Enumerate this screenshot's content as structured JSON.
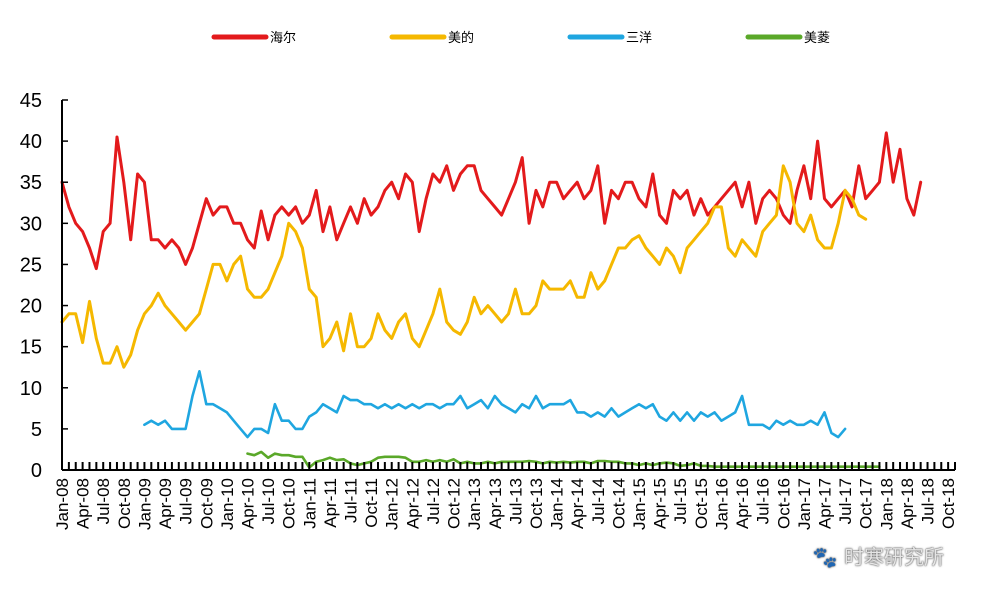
{
  "chart_data": {
    "type": "line",
    "title": "",
    "xlabel": "",
    "ylabel": "",
    "ylim": [
      0,
      45
    ],
    "yticks": [
      0,
      5,
      10,
      15,
      20,
      25,
      30,
      35,
      40,
      45
    ],
    "grid": false,
    "legend_position": "top",
    "x_start": "2008-01",
    "x_end": "2018-11",
    "x_tick_labels": [
      "Jan-08",
      "Apr-08",
      "Jul-08",
      "Oct-08",
      "Jan-09",
      "Apr-09",
      "Jul-09",
      "Oct-09",
      "Jan-10",
      "Apr-10",
      "Jul-10",
      "Oct-10",
      "Jan-11",
      "Apr-11",
      "Jul-11",
      "Oct-11",
      "Jan-12",
      "Apr-12",
      "Jul-12",
      "Oct-12",
      "Jan-13",
      "Apr-13",
      "Jul-13",
      "Oct-13",
      "Jan-14",
      "Apr-14",
      "Jul-14",
      "Oct-14",
      "Jan-15",
      "Apr-15",
      "Jul-15",
      "Oct-15",
      "Jan-16",
      "Apr-16",
      "Jul-16",
      "Oct-16",
      "Jan-17",
      "Apr-17",
      "Jul-17",
      "Oct-17",
      "Jan-18",
      "Apr-18",
      "Jul-18",
      "Oct-18"
    ],
    "series": [
      {
        "name": "海尔",
        "color": "#e31a1c",
        "start_index": 0,
        "values": [
          35,
          32,
          30,
          29,
          27,
          24.5,
          29,
          30,
          40.5,
          35,
          28,
          36,
          35,
          28,
          28,
          27,
          28,
          27,
          25,
          27,
          30,
          33,
          31,
          32,
          32,
          30,
          30,
          28,
          27,
          31.5,
          28,
          31,
          32,
          31,
          32,
          30,
          31,
          34,
          29,
          32,
          28,
          30,
          32,
          30,
          33,
          31,
          32,
          34,
          35,
          33,
          36,
          35,
          29,
          33,
          36,
          35,
          37,
          34,
          36,
          37,
          37,
          34,
          33,
          32,
          31,
          33,
          35,
          38,
          30,
          34,
          32,
          35,
          35,
          33,
          34,
          35,
          33,
          34,
          37,
          30,
          34,
          33,
          35,
          35,
          33,
          32,
          36,
          31,
          30,
          34,
          33,
          34,
          31,
          33,
          31,
          32,
          33,
          34,
          35,
          32,
          35,
          30,
          33,
          34,
          33,
          31,
          30,
          34,
          37,
          33,
          40,
          33,
          32,
          33,
          34,
          32,
          37,
          33,
          34,
          35,
          41,
          35,
          39,
          33,
          31,
          35
        ]
      },
      {
        "name": "美的",
        "color": "#f5b800",
        "start_index": 0,
        "values": [
          18,
          19,
          19,
          15.5,
          20.5,
          16,
          13,
          13,
          15,
          12.5,
          14,
          17,
          19,
          20,
          21.5,
          20,
          19,
          18,
          17,
          18,
          19,
          22,
          25,
          25,
          23,
          25,
          26,
          22,
          21,
          21,
          22,
          24,
          26,
          30,
          29,
          27,
          22,
          21,
          15,
          16,
          18,
          14.5,
          19,
          15,
          15,
          16,
          19,
          17,
          16,
          18,
          19,
          16,
          15,
          17,
          19,
          22,
          18,
          17,
          16.5,
          18,
          21,
          19,
          20,
          19,
          18,
          19,
          22,
          19,
          19,
          20,
          23,
          22,
          22,
          22,
          23,
          21,
          21,
          24,
          22,
          23,
          25,
          27,
          27,
          28,
          28.5,
          27,
          26,
          25,
          27,
          26,
          24,
          27,
          28,
          29,
          30,
          32,
          32,
          27,
          26,
          28,
          27,
          26,
          29,
          30,
          31,
          37,
          35,
          30,
          29,
          31,
          28,
          27,
          27,
          30,
          34,
          33,
          31,
          30.5
        ]
      },
      {
        "name": "三洋",
        "color": "#1fa6e0",
        "start_index": 12,
        "values": [
          5.5,
          6,
          5.5,
          6,
          5,
          5,
          5,
          9,
          12,
          8,
          8,
          7.5,
          7,
          6,
          5,
          4,
          5,
          5,
          4.5,
          8,
          6,
          6,
          5,
          5,
          6.5,
          7,
          8,
          7.5,
          7,
          9,
          8.5,
          8.5,
          8,
          8,
          7.5,
          8,
          7.5,
          8,
          7.5,
          8,
          7.5,
          8,
          8,
          7.5,
          8,
          8,
          9,
          7.5,
          8,
          8.5,
          7.5,
          9,
          8,
          7.5,
          7,
          8,
          7.5,
          9,
          7.5,
          8,
          8,
          8,
          8.5,
          7,
          7,
          6.5,
          7,
          6.5,
          7.5,
          6.5,
          7,
          7.5,
          8,
          7.5,
          8,
          6.5,
          6,
          7,
          6,
          7,
          6,
          7,
          6.5,
          7,
          6,
          6.5,
          7,
          9,
          5.5,
          5.5,
          5.5,
          5,
          6,
          5.5,
          6,
          5.5,
          5.5,
          6,
          5.5,
          7,
          4.5,
          4,
          5
        ]
      },
      {
        "name": "美菱",
        "color": "#5aa829",
        "start_index": 27,
        "values": [
          2,
          1.8,
          2.2,
          1.5,
          2,
          1.8,
          1.8,
          1.6,
          1.6,
          0.3,
          1,
          1.2,
          1.5,
          1.2,
          1.3,
          0.8,
          0.6,
          0.8,
          1,
          1.5,
          1.6,
          1.6,
          1.6,
          1.5,
          1,
          1,
          1.2,
          1,
          1.2,
          1,
          1.3,
          0.8,
          1,
          0.8,
          0.8,
          1,
          0.8,
          1,
          1,
          1,
          1,
          1.1,
          1,
          0.8,
          1,
          0.9,
          1,
          0.9,
          1,
          1,
          0.8,
          1.1,
          1.1,
          1,
          1,
          0.8,
          0.8,
          0.6,
          0.8,
          0.6,
          0.8,
          0.9,
          0.8,
          0.5,
          0.6,
          0.8,
          0.5,
          0.5,
          0.4,
          0.4,
          0.4,
          0.4,
          0.4,
          0.4,
          0.4,
          0.4,
          0.4,
          0.4,
          0.4,
          0.4,
          0.4,
          0.4,
          0.4,
          0.4,
          0.4,
          0.4,
          0.4,
          0.4,
          0.4,
          0.4,
          0.4,
          0.4,
          0.4
        ]
      }
    ]
  },
  "watermark": "🐾 时寒研究所"
}
